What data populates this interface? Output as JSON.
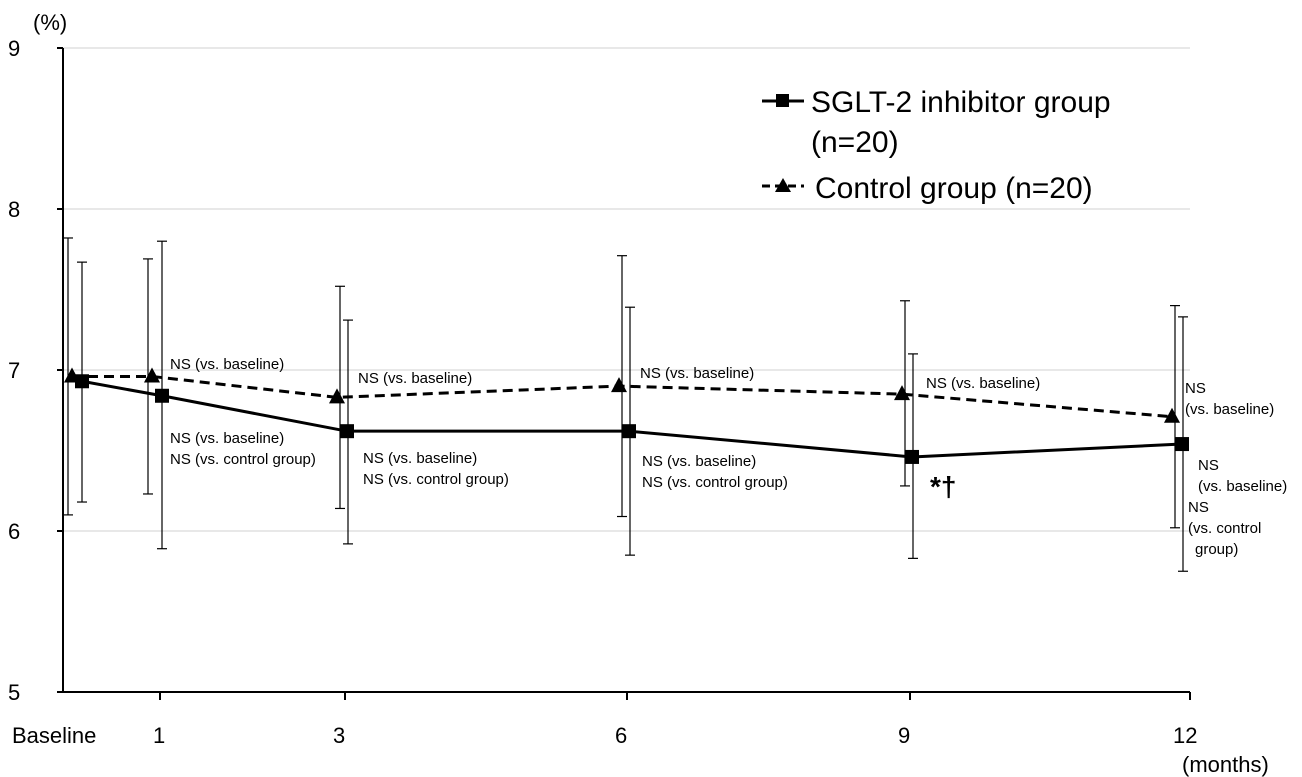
{
  "chart_data": {
    "type": "line",
    "y_unit": "(%)",
    "x_unit": "(months)",
    "categories": [
      "Baseline",
      "1",
      "3",
      "6",
      "9",
      "12"
    ],
    "x": [
      0,
      1,
      3,
      6,
      9,
      12
    ],
    "ylim": [
      5,
      9
    ],
    "yticks": [
      "5",
      "6",
      "7",
      "8",
      "9"
    ],
    "grid": true,
    "legend_position": "top-right",
    "series": [
      {
        "name": "SGLT-2 inhibitor group",
        "name_line2": "(n=20)",
        "marker": "square",
        "line_style": "solid",
        "values": [
          6.93,
          6.84,
          6.62,
          6.62,
          6.46,
          6.54
        ],
        "error_low": [
          6.18,
          5.89,
          5.92,
          5.85,
          5.83,
          5.75
        ],
        "error_high": [
          7.67,
          7.8,
          7.31,
          7.39,
          7.1,
          7.33
        ]
      },
      {
        "name": "Control group (n=20)",
        "marker": "triangle",
        "line_style": "dashed",
        "values": [
          6.96,
          6.96,
          6.83,
          6.9,
          6.85,
          6.71
        ],
        "error_low": [
          6.1,
          6.23,
          6.14,
          6.09,
          6.28,
          6.02
        ],
        "error_high": [
          7.82,
          7.69,
          7.52,
          7.71,
          7.43,
          7.4
        ]
      }
    ],
    "annotations": {
      "m1_control": "NS (vs. baseline)",
      "m1_sglt_a": "NS (vs. baseline)",
      "m1_sglt_b": "NS (vs. control group)",
      "m3_control": "NS (vs. baseline)",
      "m3_sglt_a": "NS (vs. baseline)",
      "m3_sglt_b": "NS (vs. control group)",
      "m6_control": "NS (vs. baseline)",
      "m6_sglt_a": "NS (vs. baseline)",
      "m6_sglt_b": "NS (vs. control group)",
      "m9_control": "NS (vs. baseline)",
      "m9_sglt_star": "*†",
      "m12_control_a": "NS",
      "m12_control_b": "(vs. baseline)",
      "m12_sglt_a": "NS",
      "m12_sglt_b": "(vs. baseline)",
      "m12_sglt_c": "NS",
      "m12_sglt_d": "(vs. control",
      "m12_sglt_e": "group)"
    }
  }
}
